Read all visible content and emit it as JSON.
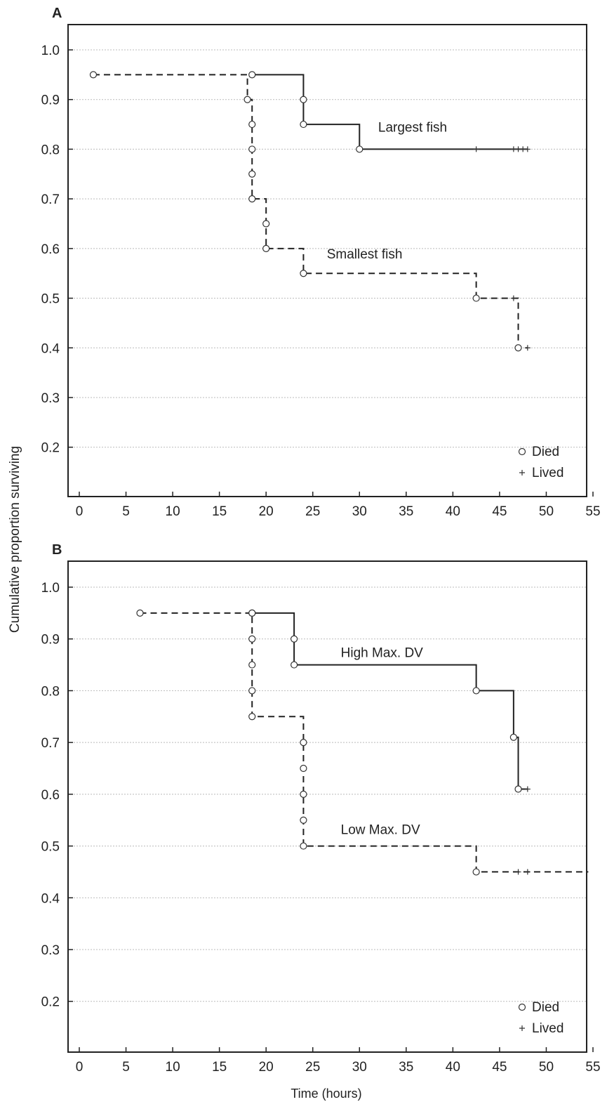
{
  "figure": {
    "ylabel": "Cumulative proportion surviving",
    "xlabel": "Time (hours)"
  },
  "chart_data": [
    {
      "type": "line",
      "panel_label": "A",
      "xlim": [
        -1.5,
        55
      ],
      "ylim": [
        0.1,
        1.05
      ],
      "x_ticks": [
        0,
        5,
        10,
        15,
        20,
        25,
        30,
        35,
        40,
        45,
        50,
        55
      ],
      "y_ticks": [
        0.2,
        0.3,
        0.4,
        0.5,
        0.6,
        0.7,
        0.8,
        0.9,
        1.0
      ],
      "x_tick_labels": [
        "0",
        "5",
        "10",
        "15",
        "20",
        "25",
        "30",
        "35",
        "40",
        "45",
        "50",
        "55"
      ],
      "y_tick_labels": [
        "0.2",
        "0.3",
        "0.4",
        "0.5",
        "0.6",
        "0.7",
        "0.8",
        "0.9",
        "1.0"
      ],
      "grid": "horizontal-dotted",
      "legend": {
        "placement": "bottom-right",
        "items": [
          {
            "symbol": "circle",
            "label": "Died"
          },
          {
            "symbol": "plus",
            "label": "Lived"
          }
        ]
      },
      "series": [
        {
          "label": "Largest fish",
          "label_position": {
            "x": 32,
            "y": 0.835
          },
          "style": "solid",
          "steps": [
            [
              18.5,
              0.95
            ],
            [
              24,
              0.85
            ],
            [
              30,
              0.8
            ],
            [
              48,
              0.8
            ]
          ],
          "died": [
            {
              "x": 18.5,
              "y": 0.95
            },
            {
              "x": 24,
              "y": 0.9
            },
            {
              "x": 24,
              "y": 0.85
            },
            {
              "x": 30,
              "y": 0.8
            }
          ],
          "lived": [
            {
              "x": 42.5,
              "y": 0.8
            },
            {
              "x": 46.5,
              "y": 0.8
            },
            {
              "x": 47,
              "y": 0.8
            },
            {
              "x": 47.5,
              "y": 0.8
            },
            {
              "x": 48,
              "y": 0.8
            }
          ]
        },
        {
          "label": "Smallest fish",
          "label_position": {
            "x": 26.5,
            "y": 0.58
          },
          "style": "dashed",
          "steps": [
            [
              1.5,
              0.95
            ],
            [
              18,
              0.9
            ],
            [
              18.5,
              0.7
            ],
            [
              20,
              0.6
            ],
            [
              24,
              0.55
            ],
            [
              42.5,
              0.5
            ],
            [
              47,
              0.4
            ],
            [
              48,
              0.4
            ]
          ],
          "died": [
            {
              "x": 1.5,
              "y": 0.95
            },
            {
              "x": 18,
              "y": 0.9
            },
            {
              "x": 18.5,
              "y": 0.85
            },
            {
              "x": 18.5,
              "y": 0.8
            },
            {
              "x": 18.5,
              "y": 0.75
            },
            {
              "x": 18.5,
              "y": 0.7
            },
            {
              "x": 20,
              "y": 0.65
            },
            {
              "x": 20,
              "y": 0.6
            },
            {
              "x": 24,
              "y": 0.55
            },
            {
              "x": 42.5,
              "y": 0.5
            },
            {
              "x": 47,
              "y": 0.4
            }
          ],
          "lived": [
            {
              "x": 46.5,
              "y": 0.5
            },
            {
              "x": 48,
              "y": 0.4
            }
          ]
        }
      ]
    },
    {
      "type": "line",
      "panel_label": "B",
      "xlim": [
        -1.5,
        55
      ],
      "ylim": [
        0.1,
        1.05
      ],
      "x_ticks": [
        0,
        5,
        10,
        15,
        20,
        25,
        30,
        35,
        40,
        45,
        50,
        55
      ],
      "y_ticks": [
        0.2,
        0.3,
        0.4,
        0.5,
        0.6,
        0.7,
        0.8,
        0.9,
        1.0
      ],
      "x_tick_labels": [
        "0",
        "5",
        "10",
        "15",
        "20",
        "25",
        "30",
        "35",
        "40",
        "45",
        "50",
        "55"
      ],
      "y_tick_labels": [
        "0.2",
        "0.3",
        "0.4",
        "0.5",
        "0.6",
        "0.7",
        "0.8",
        "0.9",
        "1.0"
      ],
      "grid": "horizontal-dotted",
      "legend": {
        "placement": "bottom-right",
        "items": [
          {
            "symbol": "circle",
            "label": "Died"
          },
          {
            "symbol": "plus",
            "label": "Lived"
          }
        ]
      },
      "series": [
        {
          "label": "High Max. DV",
          "label_position": {
            "x": 28,
            "y": 0.865
          },
          "style": "solid",
          "steps": [
            [
              18.5,
              0.95
            ],
            [
              23,
              0.85
            ],
            [
              42.5,
              0.8
            ],
            [
              46.5,
              0.71
            ],
            [
              47,
              0.61
            ],
            [
              48,
              0.61
            ]
          ],
          "died": [
            {
              "x": 18.5,
              "y": 0.95
            },
            {
              "x": 23,
              "y": 0.9
            },
            {
              "x": 23,
              "y": 0.85
            },
            {
              "x": 42.5,
              "y": 0.8
            },
            {
              "x": 46.5,
              "y": 0.71
            },
            {
              "x": 47,
              "y": 0.61
            }
          ],
          "lived": [
            {
              "x": 48,
              "y": 0.61
            }
          ]
        },
        {
          "label": "Low Max. DV",
          "label_position": {
            "x": 28,
            "y": 0.523
          },
          "style": "dashed",
          "steps": [
            [
              6.5,
              0.95
            ],
            [
              18.5,
              0.75
            ],
            [
              24,
              0.5
            ],
            [
              42.5,
              0.45
            ],
            [
              54.5,
              0.45
            ]
          ],
          "died": [
            {
              "x": 6.5,
              "y": 0.95
            },
            {
              "x": 18.5,
              "y": 0.95
            },
            {
              "x": 18.5,
              "y": 0.9
            },
            {
              "x": 18.5,
              "y": 0.85
            },
            {
              "x": 18.5,
              "y": 0.8
            },
            {
              "x": 18.5,
              "y": 0.75
            },
            {
              "x": 24,
              "y": 0.7
            },
            {
              "x": 24,
              "y": 0.65
            },
            {
              "x": 24,
              "y": 0.6
            },
            {
              "x": 24,
              "y": 0.55
            },
            {
              "x": 24,
              "y": 0.5
            },
            {
              "x": 42.5,
              "y": 0.45
            }
          ],
          "lived": [
            {
              "x": 47,
              "y": 0.45
            },
            {
              "x": 48,
              "y": 0.45
            }
          ]
        }
      ]
    }
  ]
}
